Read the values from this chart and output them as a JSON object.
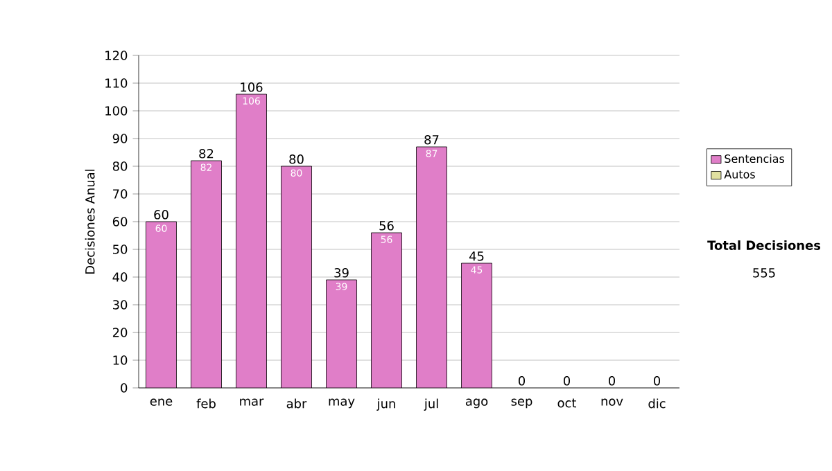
{
  "chart_data": {
    "type": "bar",
    "ylabel": "Decisiones Anual",
    "categories": [
      "ene",
      "feb",
      "mar",
      "abr",
      "may",
      "jun",
      "jul",
      "ago",
      "sep",
      "oct",
      "nov",
      "dic"
    ],
    "series": [
      {
        "name": "Sentencias",
        "color": "#e07ec8",
        "values": [
          60,
          82,
          106,
          80,
          39,
          56,
          87,
          45,
          0,
          0,
          0,
          0
        ],
        "value_labels": [
          "60",
          "82",
          "106",
          "80",
          "39",
          "56",
          "87",
          "45",
          null,
          null,
          null,
          null
        ]
      },
      {
        "name": "Autos",
        "color": "#e0e0a0",
        "values": [
          0,
          0,
          0,
          0,
          0,
          0,
          0,
          0,
          0,
          0,
          0,
          0
        ]
      }
    ],
    "stacked": true,
    "totals": [
      "60",
      "82",
      "106",
      "80",
      "39",
      "56",
      "87",
      "45",
      "0",
      "0",
      "0",
      "0"
    ],
    "ylim": [
      0,
      120
    ],
    "yticks": [
      0,
      10,
      20,
      30,
      40,
      50,
      60,
      70,
      80,
      90,
      100,
      110,
      120
    ],
    "grid": "y",
    "legend": "right",
    "annotations": [
      "Total Decisiones",
      "555"
    ]
  }
}
